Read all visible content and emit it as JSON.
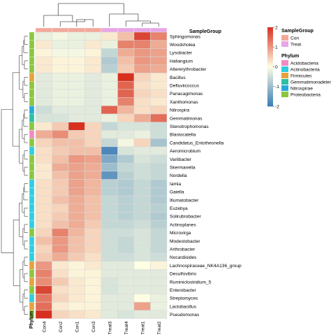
{
  "chart_data": {
    "type": "heatmap",
    "title": "",
    "columns": [
      "Con4",
      "Con2",
      "Con1",
      "Con3",
      "Treat3",
      "Treat4",
      "Treat1",
      "Treat2"
    ],
    "column_groups": [
      "Con",
      "Con",
      "Con",
      "Con",
      "Treat",
      "Treat",
      "Treat",
      "Treat"
    ],
    "rows": [
      "Sphingomonas",
      "Woodsholea",
      "Lysobacter",
      "Haliangium",
      "Altererythrobacter",
      "Bacillus",
      "Defluviicoccus",
      "Panacagimonas",
      "Xanthomonas",
      "Nitrospira",
      "Gemmatimonas",
      "Stenotrophomonas",
      "Blastocatella",
      "Candidatus_Entotheonella",
      "Aeromicrobium",
      "Variibacter",
      "Skermanella",
      "Nordella",
      "Iamia",
      "Gaiella",
      "Illumatobacter",
      "Euzebya",
      "Solirubrobacter",
      "Actinoplanes",
      "Microvirga",
      "Modestobacter",
      "Arthrobacter",
      "Nocardioides",
      "Lachnospiraceae_NK4A136_group",
      "Desulfovibrio",
      "Ruminiclostridium_5",
      "Enterobacter",
      "Streptomyces",
      "Lactobacillus",
      "Pseudomonas"
    ],
    "row_phyla": [
      "Proteobacteria",
      "Proteobacteria",
      "Proteobacteria",
      "Proteobacteria",
      "Proteobacteria",
      "Firmicutes",
      "Proteobacteria",
      "Proteobacteria",
      "Proteobacteria",
      "Nitrospirae",
      "Gemmatimonadetes",
      "Proteobacteria",
      "Acidobacteria",
      "Proteobacteria",
      "Actinobacteria",
      "Proteobacteria",
      "Proteobacteria",
      "Proteobacteria",
      "Actinobacteria",
      "Actinobacteria",
      "Actinobacteria",
      "Actinobacteria",
      "Actinobacteria",
      "Actinobacteria",
      "Proteobacteria",
      "Actinobacteria",
      "Actinobacteria",
      "Actinobacteria",
      "Firmicutes",
      "Proteobacteria",
      "Firmicutes",
      "Proteobacteria",
      "Actinobacteria",
      "Firmicutes",
      "Proteobacteria"
    ],
    "values": [
      [
        -0.2,
        -0.1,
        -0.2,
        -0.2,
        0.2,
        0.6,
        1.8,
        1.2
      ],
      [
        0.2,
        -0.2,
        -0.2,
        0.2,
        -0.2,
        1.2,
        1.2,
        0.8
      ],
      [
        0.1,
        -0.1,
        -0.1,
        0.1,
        -0.6,
        0.8,
        1.0,
        0.9
      ],
      [
        0.2,
        0.1,
        0.1,
        0.2,
        -0.8,
        0.6,
        1.0,
        0.9
      ],
      [
        0.2,
        0.1,
        0.1,
        0.2,
        -0.7,
        0.5,
        0.9,
        0.8
      ],
      [
        -0.3,
        -0.2,
        -0.2,
        -0.3,
        -0.2,
        2.0,
        0.4,
        0.2
      ],
      [
        -0.3,
        -0.2,
        -0.2,
        -0.3,
        -0.2,
        1.5,
        0.3,
        0.2
      ],
      [
        -0.3,
        -0.2,
        -0.2,
        -0.3,
        -0.2,
        1.5,
        0.4,
        0.3
      ],
      [
        -0.3,
        -0.2,
        -0.2,
        -0.3,
        -0.2,
        1.2,
        0.3,
        0.2
      ],
      [
        -0.5,
        -0.3,
        -0.3,
        -0.3,
        1.5,
        0.7,
        0.3,
        0.4
      ],
      [
        -0.4,
        -0.4,
        -0.3,
        -0.3,
        -0.2,
        0.4,
        0.8,
        1.4
      ],
      [
        0.2,
        0.5,
        2.1,
        0.4,
        -0.6,
        -0.4,
        -0.4,
        -0.5
      ],
      [
        0.8,
        1.1,
        0.5,
        0.4,
        -0.3,
        -0.3,
        -0.2,
        -0.5
      ],
      [
        0.4,
        0.6,
        0.6,
        0.4,
        -0.6,
        -0.1,
        0.4,
        -0.9
      ],
      [
        0.3,
        0.5,
        0.6,
        0.6,
        -1.8,
        -0.4,
        -0.3,
        -0.3
      ],
      [
        0.3,
        0.6,
        1.0,
        0.9,
        -1.3,
        -0.8,
        -0.4,
        -0.5
      ],
      [
        0.2,
        0.8,
        0.9,
        0.8,
        -1.0,
        -0.6,
        -0.5,
        -0.6
      ],
      [
        0.2,
        0.6,
        0.9,
        0.8,
        -1.6,
        -0.7,
        -0.5,
        -0.6
      ],
      [
        0.3,
        0.5,
        0.9,
        0.7,
        -0.7,
        -0.8,
        -0.6,
        -0.8
      ],
      [
        0.3,
        0.5,
        0.9,
        0.7,
        -0.7,
        -0.8,
        -0.6,
        -0.8
      ],
      [
        0.3,
        0.6,
        0.8,
        0.6,
        -0.6,
        -0.7,
        -0.6,
        -0.8
      ],
      [
        0.3,
        0.4,
        0.8,
        0.6,
        -0.6,
        -0.7,
        -0.6,
        -0.7
      ],
      [
        0.3,
        0.5,
        0.8,
        0.6,
        -0.6,
        -0.7,
        -0.6,
        -0.8
      ],
      [
        0.3,
        0.6,
        0.8,
        0.5,
        -0.6,
        -0.6,
        -0.5,
        -0.7
      ],
      [
        0.4,
        1.2,
        0.7,
        0.4,
        -0.5,
        -0.5,
        -0.4,
        -0.6
      ],
      [
        0.6,
        1.0,
        0.6,
        0.4,
        -0.5,
        -0.6,
        -0.4,
        -0.6
      ],
      [
        0.4,
        1.0,
        0.6,
        0.4,
        -0.5,
        -0.6,
        -0.4,
        -0.6
      ],
      [
        0.5,
        0.8,
        0.5,
        0.3,
        -0.5,
        -0.5,
        -0.4,
        -0.5
      ],
      [
        1.0,
        0.2,
        0.1,
        0.2,
        -0.3,
        -0.3,
        0.0,
        0.1
      ],
      [
        1.2,
        0.3,
        0.1,
        0.1,
        -0.3,
        -0.3,
        -0.3,
        -0.3
      ],
      [
        1.1,
        0.5,
        0.2,
        0.1,
        -0.4,
        -0.3,
        -0.3,
        -0.3
      ],
      [
        1.8,
        0.3,
        0.2,
        0.1,
        -0.4,
        -0.3,
        -0.3,
        -0.3
      ],
      [
        1.3,
        0.4,
        0.2,
        0.1,
        -0.3,
        -0.3,
        0.0,
        -0.2
      ],
      [
        1.4,
        0.2,
        0.1,
        0.1,
        -0.3,
        -0.3,
        0.9,
        -0.2
      ],
      [
        2.0,
        0.4,
        0.3,
        0.2,
        -0.3,
        -0.4,
        -0.3,
        -0.3
      ]
    ],
    "colorbar": {
      "ticks": [
        2,
        1,
        0,
        -1,
        -2
      ],
      "min": -2,
      "max": 2,
      "low_color": "#3a7bb5",
      "mid_color": "#fefee3",
      "high_color": "#d7301f"
    },
    "annotation_col_label": "SampleGroup",
    "annotation_row_label": "Phylum",
    "legend": {
      "sample_group_title": "SampleGroup",
      "sample_groups": [
        {
          "name": "Con",
          "color": "#f4a89a"
        },
        {
          "name": "Treat",
          "color": "#e6a6e6"
        }
      ],
      "phylum_title": "Phylum",
      "phyla": [
        {
          "name": "Acidobacteria",
          "color": "#f28ac2"
        },
        {
          "name": "Actinobacteria",
          "color": "#33cce0"
        },
        {
          "name": "Firmicutes",
          "color": "#e6a23c"
        },
        {
          "name": "Gemmatimonadetes",
          "color": "#2bbfa3"
        },
        {
          "name": "Nitrospirae",
          "color": "#26a9d9"
        },
        {
          "name": "Proteobacteria",
          "color": "#8cc63f"
        }
      ]
    }
  }
}
